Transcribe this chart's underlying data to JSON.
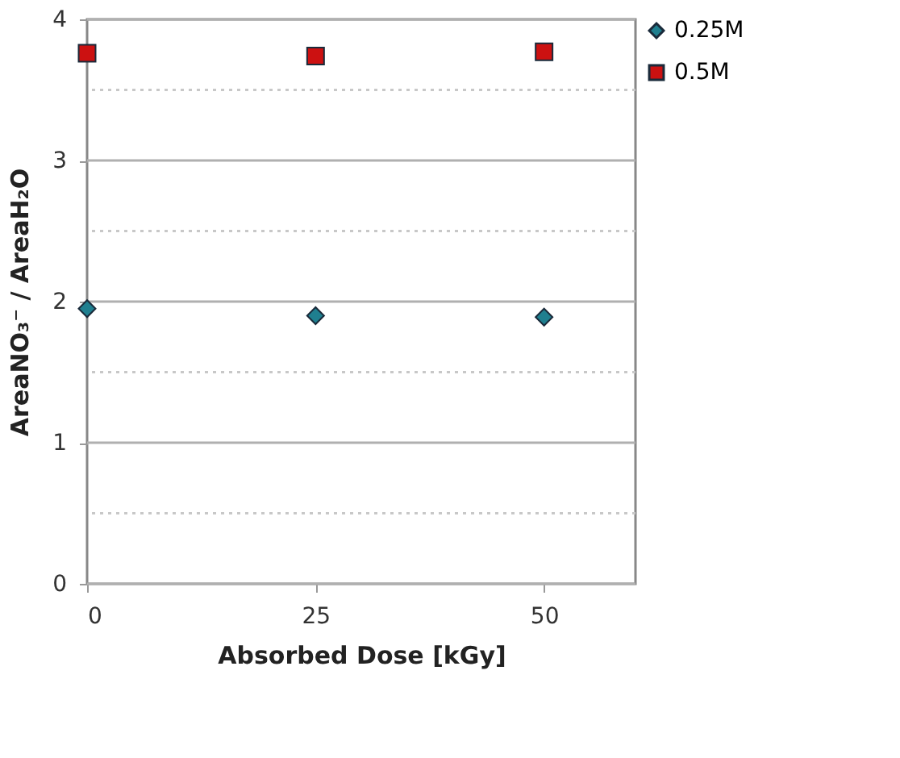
{
  "chart_data": {
    "type": "scatter",
    "xlabel": "Absorbed Dose [kGy]",
    "ylabel": "AreaNO₃⁻ / AreaH₂O",
    "x": [
      0,
      25,
      50
    ],
    "series": [
      {
        "name": "0.25M",
        "color": "#1f7f8f",
        "marker": "diamond",
        "values": [
          1.95,
          1.9,
          1.89
        ]
      },
      {
        "name": "0.5M",
        "color": "#cc1111",
        "marker": "square",
        "values": [
          3.76,
          3.74,
          3.77
        ]
      }
    ],
    "xlim": [
      0,
      60
    ],
    "xticks": [
      0,
      25,
      50
    ],
    "ylim": [
      0,
      4
    ],
    "yticks": [
      0,
      {
        "value": 0.5,
        "label": null
      },
      1,
      {
        "value": 1.5,
        "label": null
      },
      2,
      {
        "value": 2.5,
        "label": null
      },
      3,
      {
        "value": 3.5,
        "label": null
      },
      4
    ],
    "grid": "y",
    "legend": "top right"
  }
}
